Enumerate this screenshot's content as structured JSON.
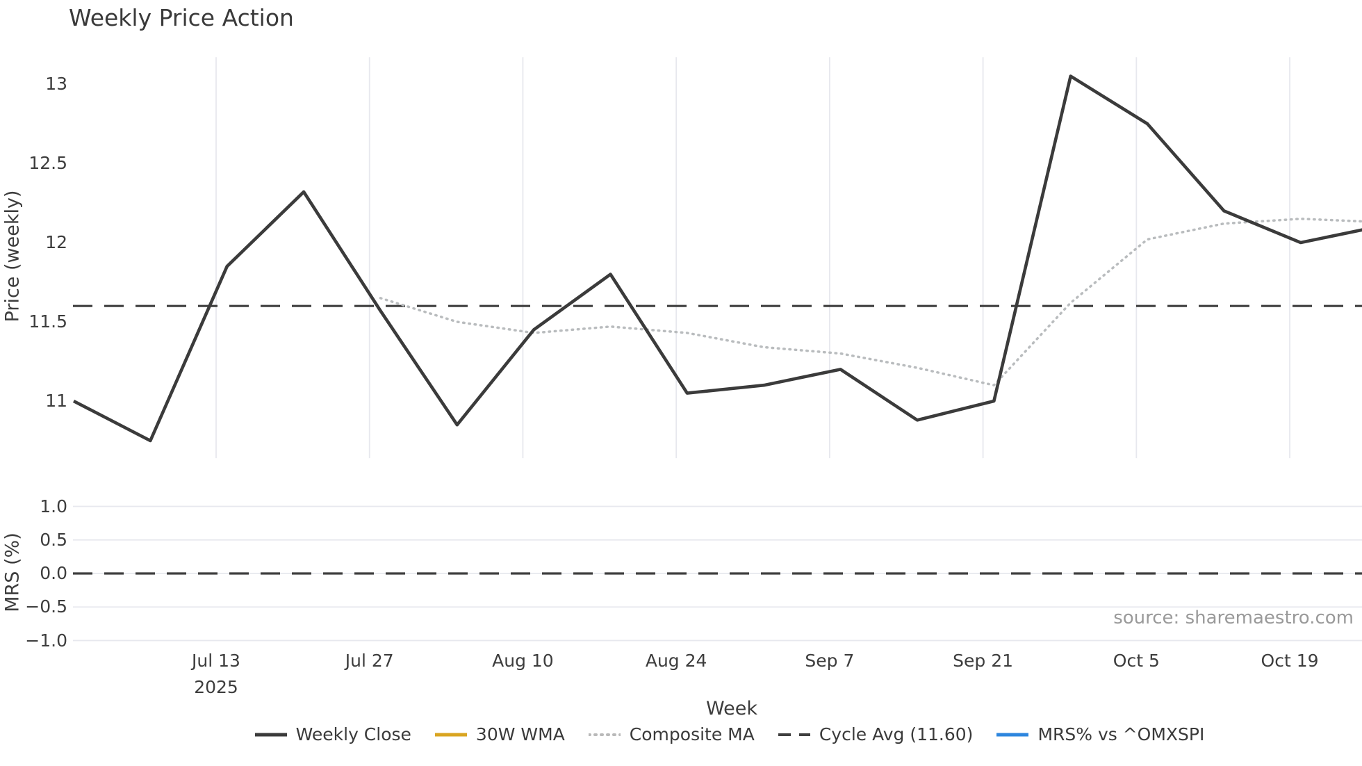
{
  "source": "source: sharemaestro.com",
  "chart_data": {
    "type": "line",
    "title": "Weekly Price Action",
    "xlabel": "Week",
    "grid_color": "#e7e8ee",
    "x_weeks": [
      "Jun 30",
      "Jul 7",
      "Jul 14",
      "Jul 21",
      "Jul 28",
      "Aug 4",
      "Aug 11",
      "Aug 18",
      "Aug 25",
      "Sep 1",
      "Sep 8",
      "Sep 15",
      "Sep 22",
      "Sep 29",
      "Oct 6",
      "Oct 13",
      "Oct 20",
      "Oct 27"
    ],
    "x_ticks": [
      {
        "label": "Jul 13",
        "sublabel": "2025"
      },
      {
        "label": "Jul 27"
      },
      {
        "label": "Aug 10"
      },
      {
        "label": "Aug 24"
      },
      {
        "label": "Sep 7"
      },
      {
        "label": "Sep 21"
      },
      {
        "label": "Oct 5"
      },
      {
        "label": "Oct 19"
      }
    ],
    "panels": [
      {
        "ylabel": "Price (weekly)",
        "ylim": [
          10.64,
          13.17
        ],
        "yticks": [
          {
            "label": "13",
            "value": 13
          },
          {
            "label": "12.5",
            "value": 12.5
          },
          {
            "label": "12",
            "value": 12
          },
          {
            "label": "11.5",
            "value": 11.5
          },
          {
            "label": "11",
            "value": 11
          }
        ],
        "grid": "vertical",
        "series": [
          {
            "name": "Weekly Close",
            "color": "#3b3b3b",
            "style": "solid",
            "width": 4.6,
            "start_index": 0,
            "values": [
              11.0,
              10.75,
              11.85,
              12.32,
              11.57,
              10.85,
              11.45,
              11.8,
              11.05,
              11.1,
              11.2,
              10.88,
              11.0,
              13.05,
              12.75,
              12.2,
              12.0,
              12.1
            ]
          },
          {
            "name": "Composite MA",
            "color": "#b9bcbe",
            "style": "dotted",
            "width": 3.5,
            "start_index": 4,
            "values": [
              11.65,
              11.5,
              11.43,
              11.47,
              11.43,
              11.34,
              11.3,
              11.21,
              11.1,
              11.62,
              12.02,
              12.12,
              12.15,
              12.13
            ]
          }
        ],
        "reference_line": {
          "name": "Cycle Avg",
          "value": 11.6,
          "color": "#3f3f3f",
          "style": "dashed",
          "width": 3.2
        }
      },
      {
        "ylabel": "MRS (%)",
        "ylim": [
          -1.1,
          1.1
        ],
        "yticks": [
          {
            "label": "1.0",
            "value": 1.0
          },
          {
            "label": "0.5",
            "value": 0.5
          },
          {
            "label": "0.0",
            "value": 0.0
          },
          {
            "label": "−0.5",
            "value": -0.5
          },
          {
            "label": "−1.0",
            "value": -1.0
          }
        ],
        "grid": "horizontal",
        "series": [],
        "reference_line": {
          "name": "zero",
          "value": 0.0,
          "color": "#3f3f3f",
          "style": "dashed",
          "width": 3.2
        }
      }
    ],
    "legend": [
      {
        "label": "Weekly Close",
        "color": "#3b3b3b",
        "style": "solid"
      },
      {
        "label": "30W WMA",
        "color": "#d9a521",
        "style": "solid"
      },
      {
        "label": "Composite MA",
        "color": "#b9b9b9",
        "style": "dotted"
      },
      {
        "label": "Cycle Avg (11.60)",
        "color": "#3f3f3f",
        "style": "dashed"
      },
      {
        "label": "MRS% vs ^OMXSPI",
        "color": "#2e86de",
        "style": "solid"
      }
    ]
  }
}
